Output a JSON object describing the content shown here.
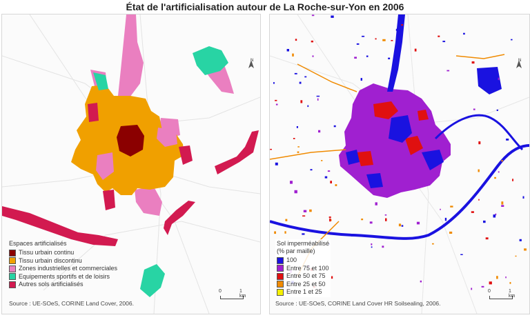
{
  "title": "État de l'artificialisation autour de La Roche-sur-Yon en 2006",
  "left_map": {
    "legend_title": "Espaces artificialisés",
    "legend_items": [
      {
        "label": "Tissu urbain continu",
        "color": "#8b0000"
      },
      {
        "label": "Tissu urbain discontinu",
        "color": "#f0a000"
      },
      {
        "label": "Zones industrielles et commerciales",
        "color": "#ea7fc0"
      },
      {
        "label": "Equipements sportifs et de loisirs",
        "color": "#28d4a4"
      },
      {
        "label": "Autres sols artificialisés",
        "color": "#d21a50"
      }
    ],
    "source": "Source : UE-SOeS, CORINE Land Cover, 2006.",
    "scale_start": "0",
    "scale_end": "1 km",
    "north": "N"
  },
  "right_map": {
    "legend_title_line1": "Sol imperméabilisé",
    "legend_title_line2": "(% par maille)",
    "legend_items": [
      {
        "label": "100",
        "color": "#1a12e0"
      },
      {
        "label": "Entre 75 et 100",
        "color": "#a020d0"
      },
      {
        "label": "Entre 50 et 75",
        "color": "#e01010"
      },
      {
        "label": "Entre 25 et 50",
        "color": "#f08a00"
      },
      {
        "label": "Entre 1 et 25",
        "color": "#f5f000"
      }
    ],
    "source": "Source : UE-SOeS, CORINE Land Cover HR Soilsealing, 2006.",
    "scale_start": "0",
    "scale_end": "1 km",
    "north": "N"
  }
}
